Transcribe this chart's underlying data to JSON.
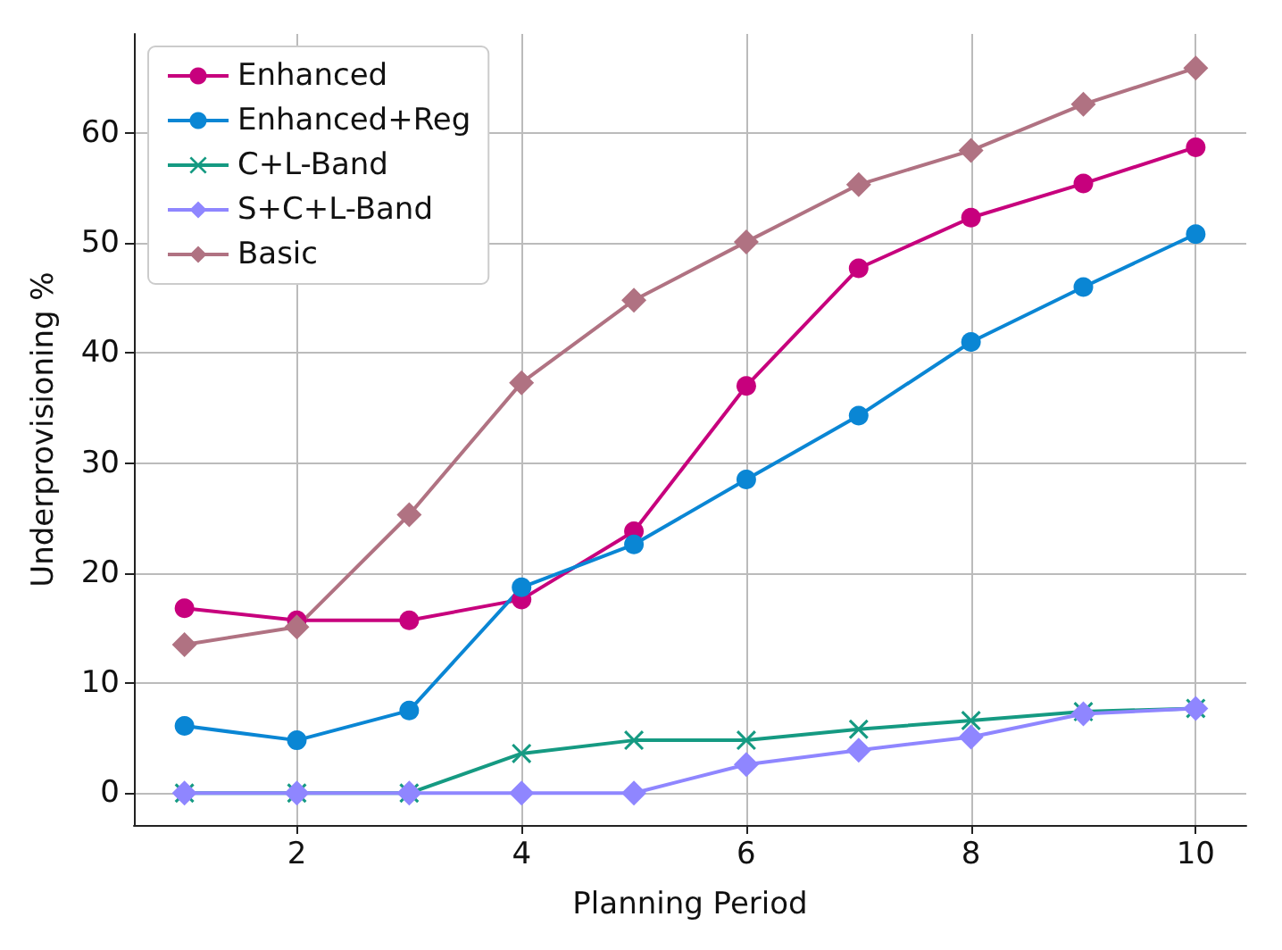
{
  "chart_data": {
    "type": "line",
    "xlabel": "Planning Period",
    "ylabel": "Underprovisioning %",
    "x": [
      1,
      2,
      3,
      4,
      5,
      6,
      7,
      8,
      9,
      10
    ],
    "xlim": [
      0.55,
      10.45
    ],
    "xticks": [
      2,
      4,
      6,
      8,
      10
    ],
    "ylim": [
      -2.9,
      69
    ],
    "yticks": [
      0,
      10,
      20,
      30,
      40,
      50,
      60
    ],
    "grid": true,
    "legend": "top left",
    "line_style": "solid",
    "series": [
      {
        "name": "Enhanced",
        "color": "#c7007d",
        "marker": "circle",
        "values": [
          16.8,
          15.7,
          15.7,
          17.6,
          23.8,
          37.0,
          47.7,
          52.3,
          55.4,
          58.7
        ]
      },
      {
        "name": "Enhanced+Reg",
        "color": "#0a86d4",
        "marker": "circle",
        "values": [
          6.1,
          4.8,
          7.5,
          18.7,
          22.6,
          28.5,
          34.3,
          41.0,
          46.0,
          50.8
        ]
      },
      {
        "name": "C+L-Band",
        "color": "#159a82",
        "marker": "cross",
        "values": [
          0,
          0,
          0,
          3.6,
          4.8,
          4.8,
          5.8,
          6.6,
          7.4,
          7.7
        ]
      },
      {
        "name": "S+C+L-Band",
        "color": "#8f86ff",
        "marker": "diamond",
        "values": [
          0,
          0,
          0,
          0,
          0,
          2.6,
          3.9,
          5.1,
          7.2,
          7.7
        ]
      },
      {
        "name": "Basic",
        "color": "#b07282",
        "marker": "diamond",
        "values": [
          13.5,
          15.1,
          25.3,
          37.3,
          44.8,
          50.1,
          55.3,
          58.4,
          62.6,
          65.9
        ]
      }
    ]
  }
}
